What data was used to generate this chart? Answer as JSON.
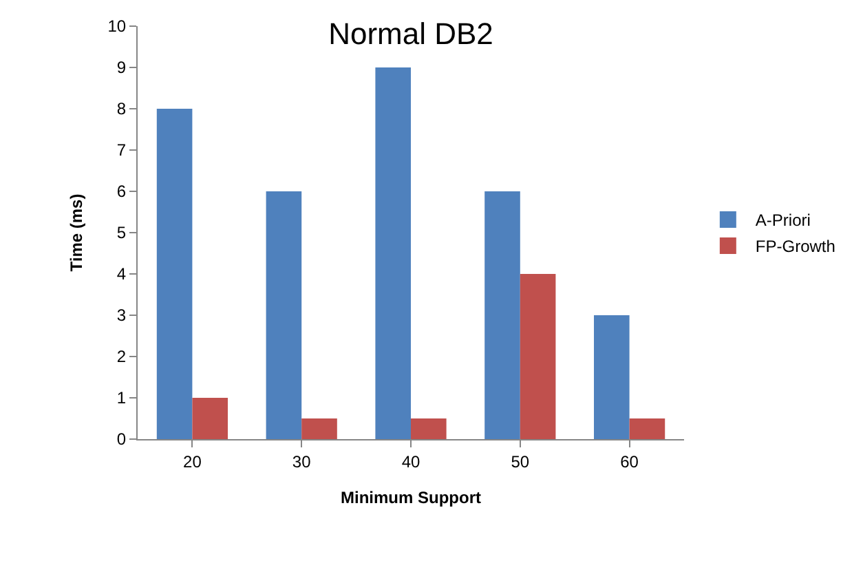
{
  "chart_data": {
    "type": "bar",
    "title": "Normal DB2",
    "xlabel": "Minimum Support",
    "ylabel": "Time (ms)",
    "categories": [
      "20",
      "30",
      "40",
      "50",
      "60"
    ],
    "series": [
      {
        "name": "A-Priori",
        "color": "#4f81bd",
        "values": [
          8,
          6,
          9,
          6,
          3
        ]
      },
      {
        "name": "FP-Growth",
        "color": "#c0504d",
        "values": [
          1,
          0.5,
          0.5,
          4,
          0.5
        ]
      }
    ],
    "ylim": [
      0,
      10
    ],
    "yticks": [
      0,
      1,
      2,
      3,
      4,
      5,
      6,
      7,
      8,
      9,
      10
    ],
    "grid": false,
    "legend": "right"
  }
}
